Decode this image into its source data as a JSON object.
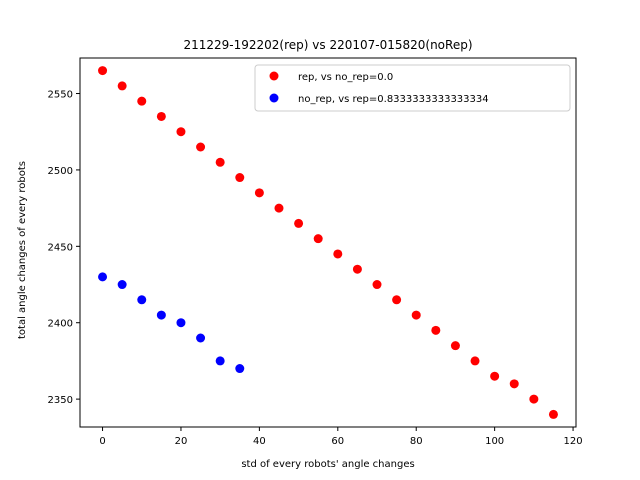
{
  "chart_data": {
    "type": "scatter",
    "title": "211229-192202(rep) vs 220107-015820(noRep)",
    "xlabel": "std of every robots' angle changes",
    "ylabel": "total angle changes of every robots",
    "xlim": [
      -5.75,
      120.75
    ],
    "ylim": [
      2331.75,
      2573.25
    ],
    "xticks": [
      0,
      20,
      40,
      60,
      80,
      100,
      120
    ],
    "yticks": [
      2350,
      2400,
      2450,
      2500,
      2550
    ],
    "grid": false,
    "legend_position": "upper right",
    "series": [
      {
        "name": "rep, vs no_rep=0.0",
        "color": "#ff0000",
        "x": [
          0,
          5,
          10,
          15,
          20,
          25,
          30,
          35,
          40,
          45,
          50,
          55,
          60,
          65,
          70,
          75,
          80,
          85,
          90,
          95,
          100,
          105,
          110,
          115
        ],
        "y": [
          2565,
          2555,
          2545,
          2535,
          2525,
          2515,
          2505,
          2495,
          2485,
          2475,
          2465,
          2455,
          2445,
          2435,
          2425,
          2415,
          2405,
          2395,
          2385,
          2375,
          2365,
          2360,
          2350,
          2340
        ]
      },
      {
        "name": "no_rep, vs rep=0.8333333333333334",
        "color": "#0000ff",
        "x": [
          0,
          5,
          10,
          15,
          20,
          25,
          30,
          35
        ],
        "y": [
          2430,
          2425,
          2415,
          2405,
          2400,
          2390,
          2375,
          2370
        ]
      }
    ]
  }
}
